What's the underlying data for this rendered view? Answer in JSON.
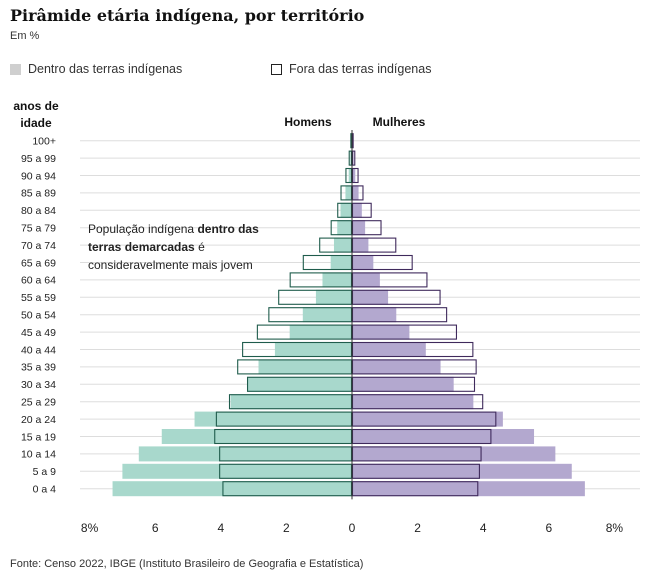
{
  "title": "Pirâmide etária indígena, por território",
  "subtitle": "Em %",
  "source": "Fonte: Censo 2022, IBGE (Instituto Brasileiro de Geografia e Estatística)",
  "legend": {
    "inside": "Dentro das terras indígenas",
    "outside": "Fora das terras indígenas"
  },
  "colors": {
    "men_inside": "#a8d8cc",
    "women_inside": "#b3a8cf",
    "men_outline": "#1f5c4c",
    "women_outline": "#3f2a5c",
    "men_label": "#1f7a63",
    "women_label": "#4b2d6b",
    "grid": "#dddddd"
  },
  "annotation": {
    "line1_a": "População indígena ",
    "line1_b": "dentro das",
    "line2_a": "terras demarcadas",
    "line2_b": " é",
    "line3": "consideravelmente mais jovem"
  },
  "chart_data": {
    "type": "bar",
    "orientation": "horizontal-pyramid",
    "y_title": [
      "anos de",
      "idade"
    ],
    "side_labels": {
      "left": "Homens",
      "right": "Mulheres"
    },
    "categories": [
      "100+",
      "95 a 99",
      "90 a 94",
      "85 a 89",
      "80 a 84",
      "75 a 79",
      "70 a 74",
      "65 a 69",
      "60 a 64",
      "55 a 59",
      "50 a 54",
      "45 a 49",
      "40 a 44",
      "35 a 39",
      "30 a 34",
      "25 a 29",
      "20 a 24",
      "15 a 19",
      "10 a 14",
      "5 a 9",
      "0 a 4"
    ],
    "x_ticks": [
      -8,
      -6,
      -4,
      -2,
      0,
      2,
      4,
      6,
      8
    ],
    "x_tick_labels": [
      "8%",
      "6",
      "4",
      "2",
      "0",
      "2",
      "4",
      "6",
      "8%"
    ],
    "xlim": [
      -8,
      8
    ],
    "series": [
      {
        "name": "Homens — Dentro das terras indígenas",
        "side": "left",
        "style": "filled",
        "values": [
          0.02,
          0.05,
          0.1,
          0.2,
          0.35,
          0.45,
          0.55,
          0.65,
          0.9,
          1.1,
          1.5,
          1.9,
          2.35,
          2.85,
          3.2,
          3.7,
          4.8,
          5.8,
          6.5,
          7.0,
          7.3
        ]
      },
      {
        "name": "Homens — Fora das terras indígenas",
        "side": "left",
        "style": "outline",
        "values": [
          0.05,
          0.1,
          0.2,
          0.35,
          0.45,
          0.65,
          1.0,
          1.5,
          1.9,
          2.25,
          2.55,
          2.9,
          3.35,
          3.5,
          3.2,
          3.75,
          4.15,
          4.2,
          4.05,
          4.05,
          3.95
        ]
      },
      {
        "name": "Mulheres — Dentro das terras indígenas",
        "side": "right",
        "style": "filled",
        "values": [
          0.02,
          0.05,
          0.1,
          0.2,
          0.3,
          0.4,
          0.5,
          0.65,
          0.85,
          1.1,
          1.35,
          1.75,
          2.25,
          2.7,
          3.1,
          3.7,
          4.6,
          5.55,
          6.2,
          6.7,
          7.1
        ]
      },
      {
        "name": "Mulheres — Fora das terras indígenas",
        "side": "right",
        "style": "outline",
        "values": [
          0.05,
          0.1,
          0.2,
          0.35,
          0.6,
          0.9,
          1.35,
          1.85,
          2.3,
          2.7,
          2.9,
          3.2,
          3.7,
          3.8,
          3.75,
          4.0,
          4.4,
          4.25,
          3.95,
          3.9,
          3.85
        ]
      }
    ]
  }
}
